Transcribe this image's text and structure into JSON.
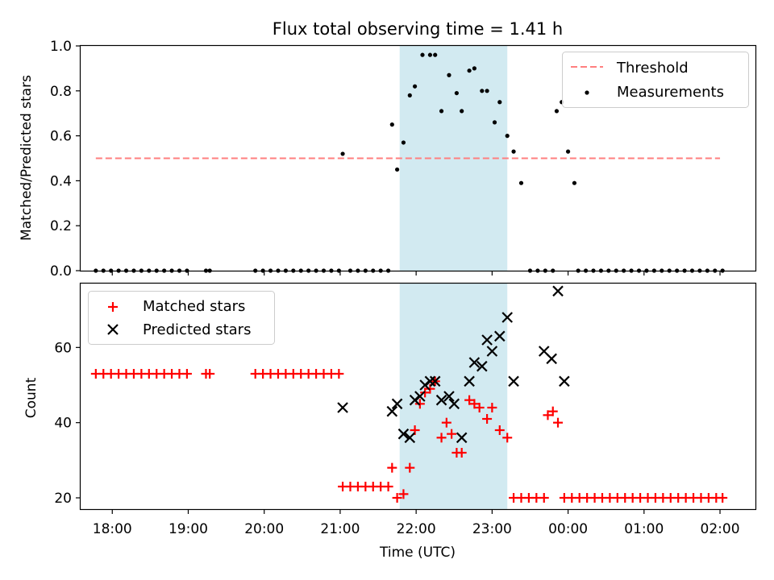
{
  "figure_title": "Flux total observing time = 1.41 h",
  "colors": {
    "shade": "#add8e6",
    "threshold": "#ff7f7f",
    "matched": "#ff0000",
    "predicted": "#000000",
    "measurement": "#000000"
  },
  "chart_data": [
    {
      "type": "scatter",
      "title": "Flux total observing time = 1.41 h",
      "xlabel": "",
      "ylabel": "Matched/Predicted stars",
      "xlim": [
        "17:35",
        "02:28"
      ],
      "ylim": [
        0.0,
        1.0
      ],
      "yticks": [
        0.0,
        0.2,
        0.4,
        0.6,
        0.8,
        1.0
      ],
      "ytick_labels": [
        "0.0",
        "0.2",
        "0.4",
        "0.6",
        "0.8",
        "1.0"
      ],
      "shaded_interval": [
        "21:47",
        "23:12"
      ],
      "legend": {
        "placement": "top-right",
        "entries": [
          "Threshold",
          "Measurements"
        ]
      },
      "threshold": {
        "name": "Threshold",
        "x": [
          "17:47",
          "02:00"
        ],
        "y": 0.5
      },
      "series": [
        {
          "name": "Measurements",
          "points": [
            [
              "17:47",
              0
            ],
            [
              "17:53",
              0
            ],
            [
              "17:59",
              0
            ],
            [
              "18:05",
              0
            ],
            [
              "18:11",
              0
            ],
            [
              "18:17",
              0
            ],
            [
              "18:23",
              0
            ],
            [
              "18:29",
              0
            ],
            [
              "18:35",
              0
            ],
            [
              "18:41",
              0
            ],
            [
              "18:47",
              0
            ],
            [
              "18:53",
              0
            ],
            [
              "18:59",
              0
            ],
            [
              "19:14",
              0
            ],
            [
              "19:17",
              0
            ],
            [
              "19:53",
              0
            ],
            [
              "19:59",
              0
            ],
            [
              "20:05",
              0
            ],
            [
              "20:11",
              0
            ],
            [
              "20:17",
              0
            ],
            [
              "20:23",
              0
            ],
            [
              "20:29",
              0
            ],
            [
              "20:35",
              0
            ],
            [
              "20:41",
              0
            ],
            [
              "20:47",
              0
            ],
            [
              "20:53",
              0
            ],
            [
              "20:59",
              0
            ],
            [
              "21:02",
              0.52
            ],
            [
              "21:08",
              0
            ],
            [
              "21:14",
              0
            ],
            [
              "21:20",
              0
            ],
            [
              "21:26",
              0
            ],
            [
              "21:32",
              0
            ],
            [
              "21:38",
              0
            ],
            [
              "21:41",
              0.65
            ],
            [
              "21:45",
              0.45
            ],
            [
              "21:50",
              0.57
            ],
            [
              "21:55",
              0.78
            ],
            [
              "21:59",
              0.82
            ],
            [
              "22:05",
              0.96
            ],
            [
              "22:11",
              0.96
            ],
            [
              "22:15",
              0.96
            ],
            [
              "22:20",
              0.71
            ],
            [
              "22:26",
              0.87
            ],
            [
              "22:32",
              0.79
            ],
            [
              "22:36",
              0.71
            ],
            [
              "22:42",
              0.89
            ],
            [
              "22:46",
              0.9
            ],
            [
              "22:52",
              0.8
            ],
            [
              "22:56",
              0.8
            ],
            [
              "23:02",
              0.66
            ],
            [
              "23:06",
              0.75
            ],
            [
              "23:12",
              0.6
            ],
            [
              "23:17",
              0.53
            ],
            [
              "23:23",
              0.39
            ],
            [
              "23:30",
              0
            ],
            [
              "23:36",
              0
            ],
            [
              "23:42",
              0
            ],
            [
              "23:48",
              0
            ],
            [
              "23:51",
              0.71
            ],
            [
              "23:55",
              0.75
            ],
            [
              "24:00",
              0.53
            ],
            [
              "24:05",
              0.39
            ],
            [
              "24:08",
              0
            ],
            [
              "24:14",
              0
            ],
            [
              "24:20",
              0
            ],
            [
              "24:26",
              0
            ],
            [
              "24:32",
              0
            ],
            [
              "24:38",
              0
            ],
            [
              "24:44",
              0
            ],
            [
              "24:50",
              0
            ],
            [
              "24:56",
              0
            ],
            [
              "25:02",
              0
            ],
            [
              "25:08",
              0
            ],
            [
              "25:14",
              0
            ],
            [
              "25:20",
              0
            ],
            [
              "25:26",
              0
            ],
            [
              "25:32",
              0
            ],
            [
              "25:38",
              0
            ],
            [
              "25:44",
              0
            ],
            [
              "25:50",
              0
            ],
            [
              "25:56",
              0
            ],
            [
              "26:02",
              0
            ]
          ]
        }
      ]
    },
    {
      "type": "scatter",
      "title": "",
      "xlabel": "Time (UTC)",
      "ylabel": "Count",
      "xlim": [
        "17:35",
        "02:28"
      ],
      "ylim": [
        17,
        77
      ],
      "yticks": [
        20,
        40,
        60
      ],
      "ytick_labels": [
        "20",
        "40",
        "60"
      ],
      "xticks": [
        "18:00",
        "19:00",
        "20:00",
        "21:00",
        "22:00",
        "23:00",
        "00:00",
        "01:00",
        "02:00"
      ],
      "shaded_interval": [
        "21:47",
        "23:12"
      ],
      "legend": {
        "placement": "top-left",
        "entries": [
          "Matched stars",
          "Predicted stars"
        ]
      },
      "series": [
        {
          "name": "Matched stars",
          "marker": "+",
          "points": [
            [
              "17:47",
              53
            ],
            [
              "17:53",
              53
            ],
            [
              "17:59",
              53
            ],
            [
              "18:05",
              53
            ],
            [
              "18:11",
              53
            ],
            [
              "18:17",
              53
            ],
            [
              "18:23",
              53
            ],
            [
              "18:29",
              53
            ],
            [
              "18:35",
              53
            ],
            [
              "18:41",
              53
            ],
            [
              "18:47",
              53
            ],
            [
              "18:53",
              53
            ],
            [
              "18:59",
              53
            ],
            [
              "19:14",
              53
            ],
            [
              "19:17",
              53
            ],
            [
              "19:53",
              53
            ],
            [
              "19:59",
              53
            ],
            [
              "20:05",
              53
            ],
            [
              "20:11",
              53
            ],
            [
              "20:17",
              53
            ],
            [
              "20:23",
              53
            ],
            [
              "20:29",
              53
            ],
            [
              "20:35",
              53
            ],
            [
              "20:41",
              53
            ],
            [
              "20:47",
              53
            ],
            [
              "20:53",
              53
            ],
            [
              "20:59",
              53
            ],
            [
              "21:02",
              23
            ],
            [
              "21:08",
              23
            ],
            [
              "21:14",
              23
            ],
            [
              "21:20",
              23
            ],
            [
              "21:26",
              23
            ],
            [
              "21:32",
              23
            ],
            [
              "21:38",
              23
            ],
            [
              "21:41",
              28
            ],
            [
              "21:45",
              20
            ],
            [
              "21:50",
              21
            ],
            [
              "21:55",
              28
            ],
            [
              "21:59",
              38
            ],
            [
              "22:03",
              45
            ],
            [
              "22:07",
              48
            ],
            [
              "22:11",
              49
            ],
            [
              "22:15",
              51
            ],
            [
              "22:20",
              36
            ],
            [
              "22:24",
              40
            ],
            [
              "22:28",
              37
            ],
            [
              "22:32",
              32
            ],
            [
              "22:36",
              32
            ],
            [
              "22:42",
              46
            ],
            [
              "22:46",
              45
            ],
            [
              "22:50",
              44
            ],
            [
              "22:56",
              41
            ],
            [
              "23:00",
              44
            ],
            [
              "23:06",
              38
            ],
            [
              "23:12",
              36
            ],
            [
              "23:17",
              20
            ],
            [
              "23:23",
              20
            ],
            [
              "23:29",
              20
            ],
            [
              "23:35",
              20
            ],
            [
              "23:41",
              20
            ],
            [
              "23:44",
              42
            ],
            [
              "23:48",
              43
            ],
            [
              "23:52",
              40
            ],
            [
              "23:57",
              20
            ],
            [
              "24:03",
              20
            ],
            [
              "24:09",
              20
            ],
            [
              "24:15",
              20
            ],
            [
              "24:21",
              20
            ],
            [
              "24:27",
              20
            ],
            [
              "24:33",
              20
            ],
            [
              "24:39",
              20
            ],
            [
              "24:45",
              20
            ],
            [
              "24:51",
              20
            ],
            [
              "24:57",
              20
            ],
            [
              "25:03",
              20
            ],
            [
              "25:09",
              20
            ],
            [
              "25:15",
              20
            ],
            [
              "25:21",
              20
            ],
            [
              "25:27",
              20
            ],
            [
              "25:33",
              20
            ],
            [
              "25:39",
              20
            ],
            [
              "25:45",
              20
            ],
            [
              "25:51",
              20
            ],
            [
              "25:57",
              20
            ],
            [
              "26:02",
              20
            ]
          ]
        },
        {
          "name": "Predicted stars",
          "marker": "x",
          "points": [
            [
              "21:02",
              44
            ],
            [
              "21:41",
              43
            ],
            [
              "21:45",
              45
            ],
            [
              "21:50",
              37
            ],
            [
              "21:55",
              36
            ],
            [
              "21:59",
              46
            ],
            [
              "22:03",
              47
            ],
            [
              "22:07",
              50
            ],
            [
              "22:11",
              51
            ],
            [
              "22:15",
              51
            ],
            [
              "22:20",
              46
            ],
            [
              "22:26",
              47
            ],
            [
              "22:30",
              45
            ],
            [
              "22:36",
              36
            ],
            [
              "22:42",
              51
            ],
            [
              "22:46",
              56
            ],
            [
              "22:52",
              55
            ],
            [
              "22:56",
              62
            ],
            [
              "23:00",
              59
            ],
            [
              "23:06",
              63
            ],
            [
              "23:12",
              68
            ],
            [
              "23:17",
              51
            ],
            [
              "23:41",
              59
            ],
            [
              "23:47",
              57
            ],
            [
              "23:52",
              75
            ],
            [
              "23:57",
              51
            ]
          ]
        }
      ]
    }
  ]
}
